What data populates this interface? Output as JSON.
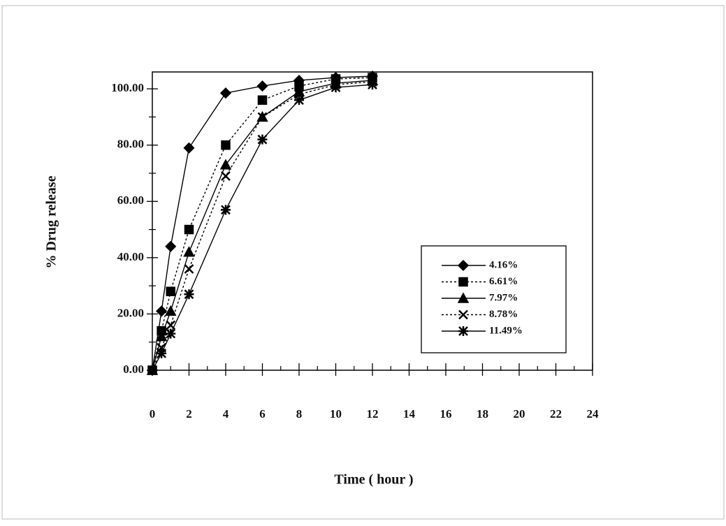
{
  "chart_data": {
    "type": "line",
    "x_label": "Time ( hour )",
    "y_label": "% Drug release",
    "x": [
      0,
      0.5,
      1,
      2,
      4,
      6,
      8,
      10,
      12
    ],
    "series": [
      {
        "name": "4.16%",
        "color": "#000000",
        "marker": "diamond",
        "dashed": false,
        "values": [
          0,
          21,
          44,
          79,
          98.5,
          101,
          103,
          104,
          104.5
        ]
      },
      {
        "name": "6.61%",
        "color": "#000000",
        "marker": "square",
        "dashed": true,
        "values": [
          0,
          14,
          28,
          50,
          80,
          96,
          101,
          103.5,
          104
        ]
      },
      {
        "name": "7.97%",
        "color": "#000000",
        "marker": "triangle",
        "dashed": false,
        "values": [
          0,
          12,
          21,
          42,
          73,
          90,
          99,
          102,
          103
        ]
      },
      {
        "name": "8.78%",
        "color": "#000000",
        "marker": "cross",
        "dashed": true,
        "values": [
          0,
          8,
          16,
          36,
          69,
          90,
          98,
          101.5,
          102.5
        ]
      },
      {
        "name": "11.49%",
        "color": "#000000",
        "marker": "asterisk",
        "dashed": false,
        "values": [
          0,
          6,
          13,
          27,
          57,
          82,
          96,
          100.5,
          101.5
        ]
      }
    ],
    "xlim": [
      0,
      24
    ],
    "xticks": [
      0,
      2,
      4,
      6,
      8,
      10,
      12,
      14,
      16,
      18,
      20,
      22,
      24
    ],
    "xminorticks": [
      1,
      3,
      5,
      7,
      9,
      11,
      13,
      15,
      17,
      19,
      21,
      23
    ],
    "ylim": [
      0,
      106
    ],
    "yticks": [
      {
        "value": 0,
        "label": "0.00"
      },
      {
        "value": 20,
        "label": "20.00"
      },
      {
        "value": 40,
        "label": "40.00"
      },
      {
        "value": 60,
        "label": "60.00"
      },
      {
        "value": 80,
        "label": "80.00"
      },
      {
        "value": 100,
        "label": "100.00"
      }
    ],
    "yminorticks": [
      10,
      30,
      50,
      70,
      90
    ],
    "grid": false,
    "legend": "right"
  }
}
